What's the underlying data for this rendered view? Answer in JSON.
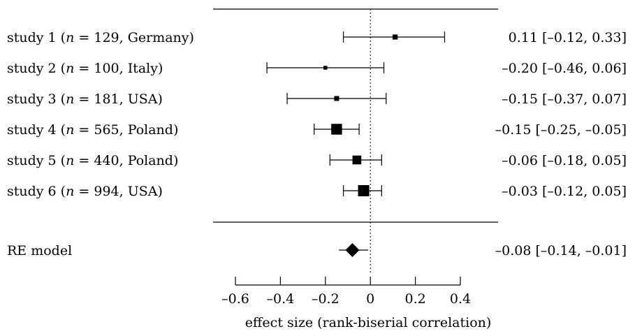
{
  "chart_data": {
    "type": "forest",
    "xlabel": "effect size (rank-biserial correlation)",
    "xlim": [
      -0.6,
      0.4
    ],
    "xticks": [
      -0.6,
      -0.4,
      -0.2,
      0,
      0.2,
      0.4
    ],
    "xtick_labels": [
      "–0.6",
      "–0.4",
      "–0.2",
      "0",
      "0.2",
      "0.4"
    ],
    "reference_line": 0,
    "studies": [
      {
        "prefix": "study 1 (",
        "n_label": "n",
        "suffix": " = 129, Germany)",
        "n": 129,
        "country": "Germany",
        "estimate": 0.11,
        "ci_low": -0.12,
        "ci_high": 0.33,
        "ci_text": "0.11 [–0.12, 0.33]",
        "weight": 0.27
      },
      {
        "prefix": "study 2 (",
        "n_label": "n",
        "suffix": " = 100, Italy)",
        "n": 100,
        "country": "Italy",
        "estimate": -0.2,
        "ci_low": -0.46,
        "ci_high": 0.06,
        "ci_text": "–0.20 [–0.46, 0.06]",
        "weight": 0.12
      },
      {
        "prefix": "study 3 (",
        "n_label": "n",
        "suffix": " = 181, USA)",
        "n": 181,
        "country": "USA",
        "estimate": -0.15,
        "ci_low": -0.37,
        "ci_high": 0.07,
        "ci_text": "–0.15 [–0.37, 0.07]",
        "weight": 0.25
      },
      {
        "prefix": "study 4 (",
        "n_label": "n",
        "suffix": " = 565, Poland)",
        "n": 565,
        "country": "Poland",
        "estimate": -0.15,
        "ci_low": -0.25,
        "ci_high": -0.05,
        "ci_text": "–0.15 [–0.25, –0.05]",
        "weight": 0.95
      },
      {
        "prefix": "study 5 (",
        "n_label": "n",
        "suffix": " = 440, Poland)",
        "n": 440,
        "country": "Poland",
        "estimate": -0.06,
        "ci_low": -0.18,
        "ci_high": 0.05,
        "ci_text": "–0.06 [–0.18, 0.05]",
        "weight": 0.72
      },
      {
        "prefix": "study 6 (",
        "n_label": "n",
        "suffix": " = 994, USA)",
        "n": 994,
        "country": "USA",
        "estimate": -0.03,
        "ci_low": -0.12,
        "ci_high": 0.05,
        "ci_text": "–0.03 [–0.12, 0.05]",
        "weight": 1.0
      }
    ],
    "summary": {
      "label": "RE model",
      "estimate": -0.08,
      "ci_low": -0.14,
      "ci_high": -0.01,
      "ci_text": "–0.08 [–0.14, –0.01]"
    }
  }
}
